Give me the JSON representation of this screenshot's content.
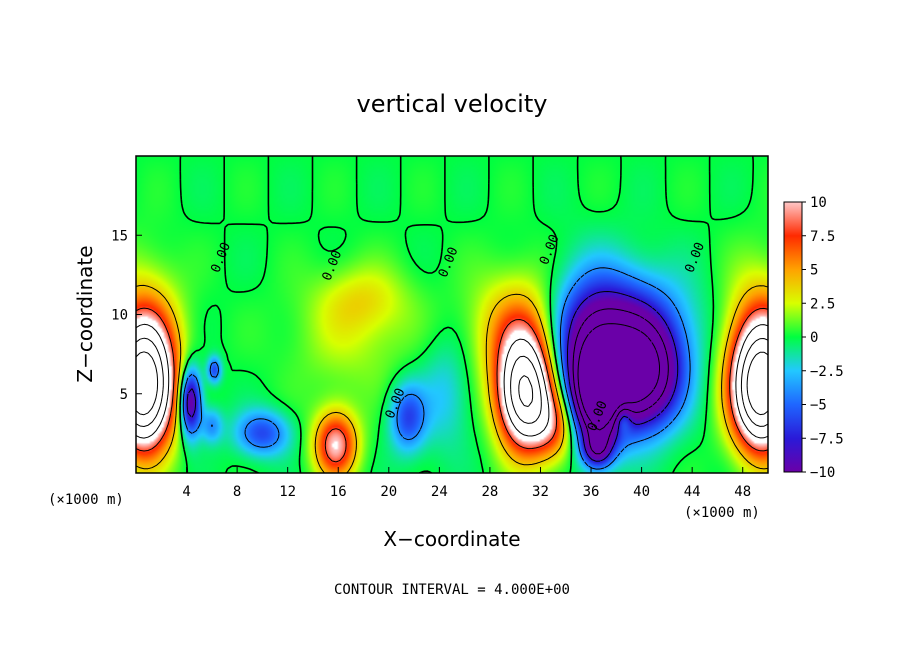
{
  "chart_data": {
    "type": "heatmap",
    "title": "vertical velocity",
    "xlabel": "X−coordinate",
    "ylabel": "Z−coordinate",
    "x_unit": "(×1000 m)",
    "z_unit": "(×1000 m)",
    "xlim": [
      0,
      50
    ],
    "ylim": [
      0,
      20
    ],
    "x_ticks": [
      4,
      8,
      12,
      16,
      20,
      24,
      28,
      32,
      36,
      40,
      44,
      48
    ],
    "y_ticks": [
      5,
      10,
      15
    ],
    "footnote": "CONTOUR INTERVAL = 4.000E+00",
    "colorbar": {
      "range": [
        -10,
        10
      ],
      "tick_values": [
        10,
        7.5,
        5,
        2.5,
        0,
        -2.5,
        -5,
        -7.5,
        -10
      ],
      "tick_labels": [
        "10",
        "7.5",
        "5",
        "2.5",
        "0",
        "−2.5",
        "−5",
        "−7.5",
        "−10"
      ],
      "colors": [
        "#6a00a8",
        "#2a1ad8",
        "#1f66ff",
        "#22c8ff",
        "#00ff40",
        "#d8ff00",
        "#ffa200",
        "#ff2a00",
        "#ffc8c8"
      ]
    },
    "contour_labels": [
      {
        "text": "0.00",
        "x": 7.0,
        "z": 13.5
      },
      {
        "text": "0.00",
        "x": 15.8,
        "z": 13.0
      },
      {
        "text": "0.00",
        "x": 25.0,
        "z": 13.2
      },
      {
        "text": "0.00",
        "x": 33.0,
        "z": 14.0
      },
      {
        "text": "0.00",
        "x": 44.5,
        "z": 13.5
      },
      {
        "text": "0.00",
        "x": 20.8,
        "z": 4.3
      },
      {
        "text": "0.00",
        "x": 36.8,
        "z": 3.5
      }
    ],
    "features": [
      {
        "x": 0.6,
        "z": 5.2,
        "sx": 1.6,
        "sz": 2.6,
        "a": 22
      },
      {
        "x": 0.6,
        "z": 8.5,
        "sx": 2.0,
        "sz": 3.0,
        "a": 6
      },
      {
        "x": 49.5,
        "z": 5.2,
        "sx": 1.6,
        "sz": 2.6,
        "a": 22
      },
      {
        "x": 49.5,
        "z": 8.5,
        "sx": 2.0,
        "sz": 3.0,
        "a": 6
      },
      {
        "x": 30.8,
        "z": 5.0,
        "sx": 1.5,
        "sz": 2.4,
        "a": 20
      },
      {
        "x": 30.5,
        "z": 9.0,
        "sx": 2.6,
        "sz": 2.5,
        "a": 6
      },
      {
        "x": 33.2,
        "z": 3.0,
        "sx": 1.3,
        "sz": 1.6,
        "a": 6
      },
      {
        "x": 15.8,
        "z": 1.8,
        "sx": 1.2,
        "sz": 1.5,
        "a": 10
      },
      {
        "x": 18.0,
        "z": 11.0,
        "sx": 2.5,
        "sz": 1.5,
        "a": 2.5
      },
      {
        "x": 17.0,
        "z": 8.5,
        "sx": 3.5,
        "sz": 2.5,
        "a": 2.0
      },
      {
        "x": 4.3,
        "z": 4.5,
        "sx": 0.6,
        "sz": 1.5,
        "a": -12
      },
      {
        "x": 6.2,
        "z": 6.5,
        "sx": 0.4,
        "sz": 0.6,
        "a": -6
      },
      {
        "x": 6.0,
        "z": 3.0,
        "sx": 0.6,
        "sz": 0.8,
        "a": -4
      },
      {
        "x": 10.0,
        "z": 2.5,
        "sx": 1.5,
        "sz": 1.0,
        "a": -6
      },
      {
        "x": 21.5,
        "z": 3.5,
        "sx": 1.0,
        "sz": 1.5,
        "a": -6
      },
      {
        "x": 24.5,
        "z": 5.0,
        "sx": 1.5,
        "sz": 2.5,
        "a": -2.5
      },
      {
        "x": 36.5,
        "z": 5.0,
        "sx": 1.4,
        "sz": 2.2,
        "a": -18
      },
      {
        "x": 36.0,
        "z": 8.0,
        "sx": 2.5,
        "sz": 3.0,
        "a": -8
      },
      {
        "x": 40.0,
        "z": 6.0,
        "sx": 2.0,
        "sz": 2.2,
        "a": -16
      },
      {
        "x": 38.8,
        "z": 9.0,
        "sx": 3.5,
        "sz": 2.5,
        "a": -7
      },
      {
        "x": 38.5,
        "z": 3.5,
        "sx": 0.5,
        "sz": 0.7,
        "a": 6
      },
      {
        "x": 36.5,
        "z": 1.5,
        "sx": 0.8,
        "sz": 0.8,
        "a": -8
      }
    ]
  }
}
